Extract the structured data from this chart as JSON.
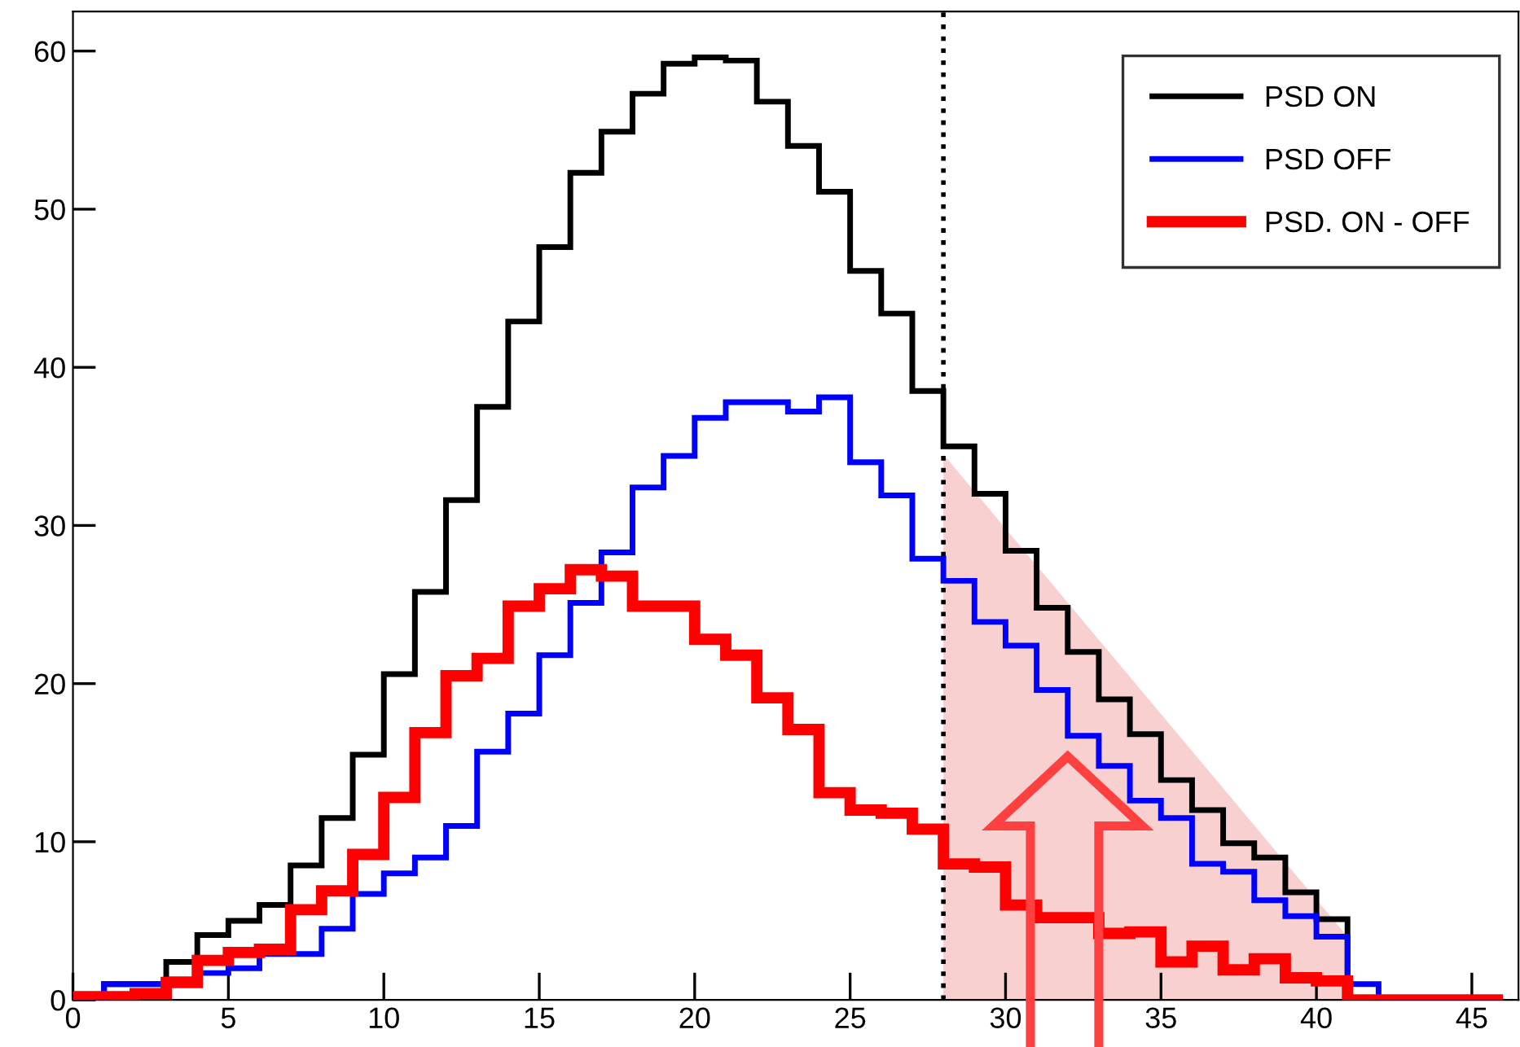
{
  "chart_data": {
    "type": "histogram",
    "bins": [
      0,
      1,
      2,
      3,
      4,
      5,
      6,
      7,
      8,
      9,
      10,
      11,
      12,
      13,
      14,
      15,
      16,
      17,
      18,
      19,
      20,
      21,
      22,
      23,
      24,
      25,
      26,
      27,
      28,
      29,
      30,
      31,
      32,
      33,
      34,
      35,
      36,
      37,
      38,
      39,
      40,
      41,
      42,
      43,
      44,
      45,
      46
    ],
    "series": [
      {
        "name": "PSD ON",
        "color": "#000000",
        "values": [
          0,
          1.0,
          1.0,
          2.4,
          4.1,
          5.0,
          6.0,
          8.5,
          11.5,
          15.5,
          20.6,
          25.8,
          31.6,
          37.5,
          42.9,
          47.6,
          52.3,
          54.9,
          57.3,
          59.2,
          59.6,
          59.4,
          56.8,
          54.0,
          51.1,
          46.1,
          43.4,
          38.5,
          35.0,
          32.0,
          28.4,
          24.8,
          22.0,
          19.0,
          16.8,
          13.9,
          12.0,
          9.9,
          9.0,
          6.8,
          5.1,
          0,
          0,
          0,
          0,
          0
        ]
      },
      {
        "name": "PSD OFF",
        "color": "#0000ff",
        "values": [
          0,
          1.0,
          1.0,
          1.3,
          1.7,
          2.0,
          2.9,
          2.9,
          4.5,
          6.7,
          8.0,
          9.0,
          11.0,
          15.7,
          18.1,
          21.8,
          25.1,
          28.3,
          32.4,
          34.4,
          36.8,
          37.8,
          37.8,
          37.2,
          38.1,
          34.0,
          31.9,
          27.9,
          26.5,
          23.9,
          22.4,
          19.6,
          16.7,
          14.8,
          12.6,
          11.5,
          8.6,
          8.1,
          6.3,
          5.3,
          4.0,
          1.0,
          0,
          0,
          0,
          0
        ]
      },
      {
        "name": "PSD. ON - OFF",
        "color": "#ff0000",
        "values": [
          0.2,
          0.2,
          0.4,
          1.1,
          2.5,
          3.0,
          3.2,
          5.7,
          6.9,
          9.2,
          12.8,
          16.9,
          20.5,
          21.6,
          24.9,
          26.0,
          27.2,
          26.8,
          24.9,
          24.9,
          22.8,
          21.8,
          19.1,
          17.1,
          13.1,
          12.0,
          11.8,
          10.8,
          8.6,
          8.4,
          6.0,
          5.2,
          5.2,
          4.2,
          4.3,
          2.4,
          3.4,
          1.9,
          2.6,
          1.4,
          1.2,
          0,
          0,
          0,
          0,
          0
        ]
      },
      {
        "type": "area",
        "color": "#f8d0d0",
        "x": [
          28,
          41
        ],
        "values": [
          34.5,
          4.0
        ]
      }
    ],
    "xlim": [
      0,
      46.5
    ],
    "xticks": [
      0,
      5,
      10,
      15,
      20,
      25,
      30,
      35,
      40,
      45
    ],
    "ylim": [
      0,
      62.5
    ],
    "yticks": [
      0,
      10,
      20,
      30,
      40,
      50,
      60
    ],
    "ref_lines": [
      {
        "axis": "x",
        "value": 28,
        "color": "#000000",
        "line_style": "dotted"
      }
    ],
    "legend": "top right",
    "grid": false
  }
}
